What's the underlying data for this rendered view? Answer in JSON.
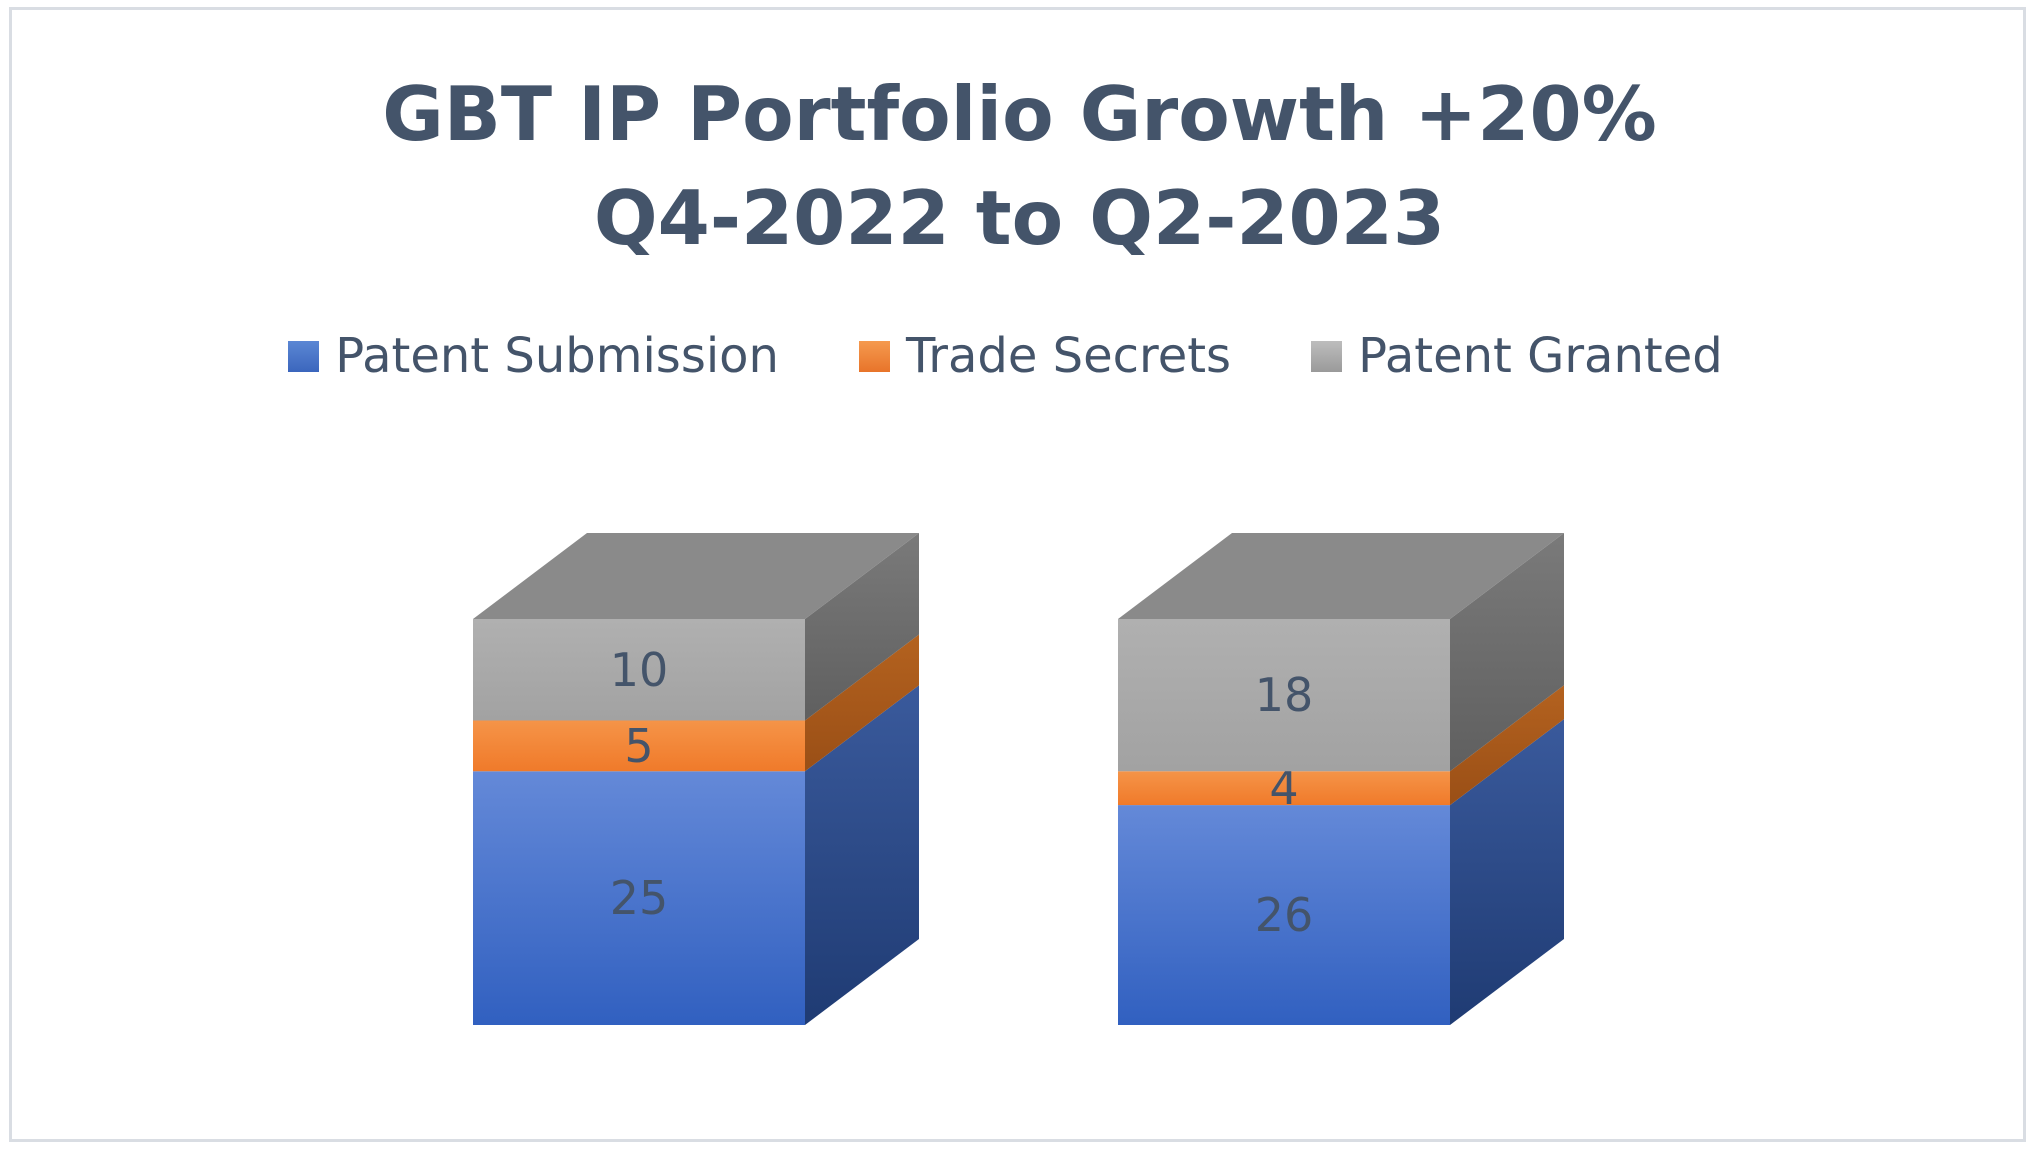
{
  "chart_data": {
    "type": "bar",
    "stacked": true,
    "three_d": true,
    "title": "GBT IP Portfolio Growth +20%",
    "subtitle": "Q4-2022 to Q2-2023",
    "categories": [
      "",
      ""
    ],
    "series": [
      {
        "name": "Patent Submission",
        "values": [
          25,
          26
        ],
        "color": "#4472c4"
      },
      {
        "name": "Trade Secrets",
        "values": [
          5,
          4
        ],
        "color": "#ed7d31"
      },
      {
        "name": "Patent Granted",
        "values": [
          10,
          18
        ],
        "color": "#a5a5a5"
      }
    ],
    "legend_position": "top",
    "grid": false,
    "xlabel": "",
    "ylabel": ""
  }
}
